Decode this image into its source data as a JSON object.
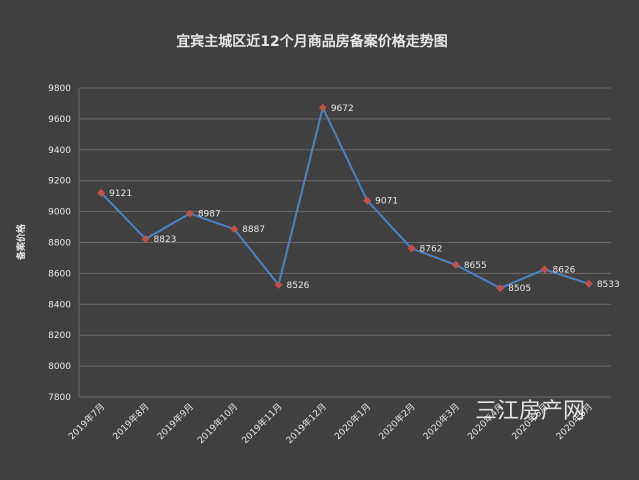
{
  "chart_data": {
    "type": "line",
    "title": "宜宾主城区近12个月商品房备案价格走势图",
    "xlabel": "",
    "ylabel": "备案价格",
    "ylim": [
      7800,
      9800
    ],
    "ytick_step": 200,
    "grid": true,
    "legend": "none",
    "categories": [
      "2019年7月",
      "2019年8月",
      "2019年9月",
      "2019年10月",
      "2019年11月",
      "2019年12月",
      "2020年1月",
      "2020年2月",
      "2020年3月",
      "2020年4月",
      "2020年5月",
      "2020年6月"
    ],
    "series": [
      {
        "values": [
          9121,
          8823,
          8987,
          8887,
          8526,
          9672,
          9071,
          8762,
          8655,
          8505,
          8626,
          8533
        ]
      }
    ],
    "colors": {
      "background": "#404040",
      "line": "#4f81bd",
      "marker": "#c0504d",
      "text": "#e6e6e6",
      "grid": "#6a6a6a"
    }
  },
  "watermark": "三江房产网"
}
